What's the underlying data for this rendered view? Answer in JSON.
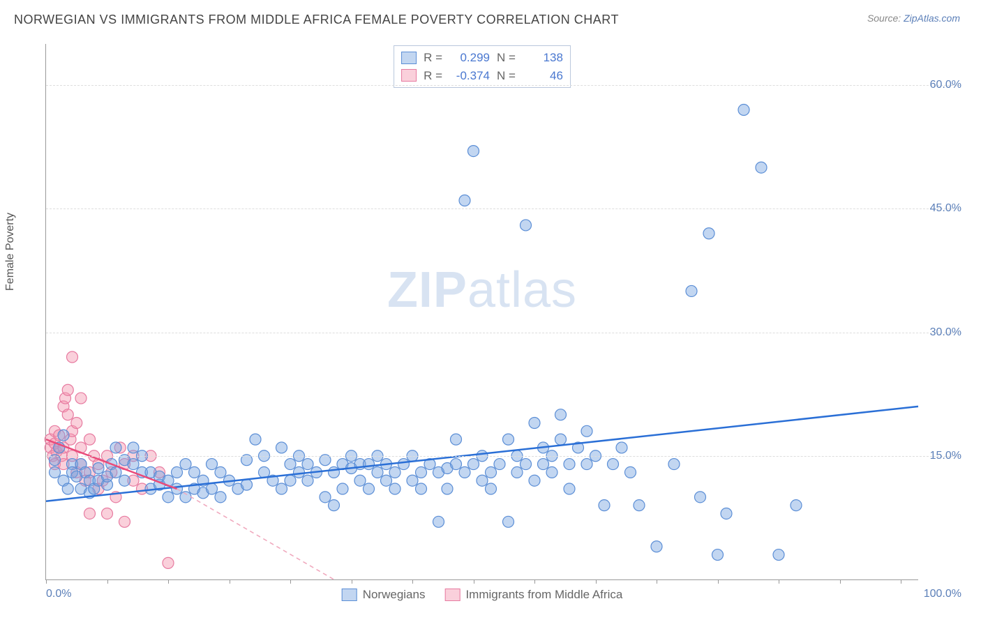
{
  "title": "NORWEGIAN VS IMMIGRANTS FROM MIDDLE AFRICA FEMALE POVERTY CORRELATION CHART",
  "source_prefix": "Source: ",
  "source_link": "ZipAtlas.com",
  "y_axis_label": "Female Poverty",
  "watermark_zip": "ZIP",
  "watermark_atlas": "atlas",
  "chart": {
    "type": "scatter",
    "xlim": [
      0,
      100
    ],
    "ylim": [
      0,
      65
    ],
    "x_min_label": "0.0%",
    "x_max_label": "100.0%",
    "y_ticks": [
      15,
      30,
      45,
      60
    ],
    "y_tick_labels": [
      "15.0%",
      "30.0%",
      "45.0%",
      "60.0%"
    ],
    "x_tick_positions": [
      0,
      7,
      14,
      21,
      28,
      35,
      42,
      49,
      56,
      63,
      70,
      77,
      84,
      91,
      98
    ],
    "background_color": "#ffffff",
    "grid_color": "#dddddd",
    "marker_radius": 8,
    "series": [
      {
        "name": "Norwegians",
        "color_fill": "rgba(120,165,225,0.45)",
        "color_stroke": "#5b8ed6",
        "r_label": "R =",
        "r_value": "0.299",
        "n_label": "N =",
        "n_value": "138",
        "trend": {
          "x1": 0,
          "y1": 9.5,
          "x2": 100,
          "y2": 21,
          "color": "#2a6fd6",
          "width": 2.5
        },
        "points": [
          [
            1,
            13
          ],
          [
            1,
            14.5
          ],
          [
            1.5,
            16
          ],
          [
            2,
            17.5
          ],
          [
            2,
            12
          ],
          [
            2.5,
            11
          ],
          [
            3,
            14
          ],
          [
            3,
            13
          ],
          [
            3.5,
            12.5
          ],
          [
            4,
            14
          ],
          [
            4,
            11
          ],
          [
            4.5,
            13
          ],
          [
            5,
            12
          ],
          [
            5,
            10.5
          ],
          [
            5.5,
            11
          ],
          [
            6,
            12
          ],
          [
            6,
            13.5
          ],
          [
            7,
            11.5
          ],
          [
            7,
            12.5
          ],
          [
            7.5,
            14
          ],
          [
            8,
            13
          ],
          [
            8,
            16
          ],
          [
            9,
            12
          ],
          [
            9,
            14.5
          ],
          [
            10,
            14
          ],
          [
            10,
            16
          ],
          [
            11,
            13
          ],
          [
            11,
            15
          ],
          [
            12,
            11
          ],
          [
            12,
            13
          ],
          [
            13,
            11.5
          ],
          [
            13,
            12.5
          ],
          [
            14,
            10
          ],
          [
            14,
            12
          ],
          [
            15,
            11
          ],
          [
            15,
            13
          ],
          [
            16,
            10
          ],
          [
            16,
            14
          ],
          [
            17,
            11
          ],
          [
            17,
            13
          ],
          [
            18,
            10.5
          ],
          [
            18,
            12
          ],
          [
            19,
            11
          ],
          [
            19,
            14
          ],
          [
            20,
            10
          ],
          [
            20,
            13
          ],
          [
            21,
            12
          ],
          [
            22,
            11
          ],
          [
            23,
            14.5
          ],
          [
            23,
            11.5
          ],
          [
            24,
            17
          ],
          [
            25,
            13
          ],
          [
            25,
            15
          ],
          [
            26,
            12
          ],
          [
            27,
            11
          ],
          [
            27,
            16
          ],
          [
            28,
            12
          ],
          [
            28,
            14
          ],
          [
            29,
            13
          ],
          [
            29,
            15
          ],
          [
            30,
            12
          ],
          [
            30,
            14
          ],
          [
            31,
            13
          ],
          [
            32,
            10
          ],
          [
            32,
            14.5
          ],
          [
            33,
            9
          ],
          [
            33,
            13
          ],
          [
            34,
            14
          ],
          [
            34,
            11
          ],
          [
            35,
            13.5
          ],
          [
            35,
            15
          ],
          [
            36,
            14
          ],
          [
            36,
            12
          ],
          [
            37,
            14
          ],
          [
            37,
            11
          ],
          [
            38,
            13
          ],
          [
            38,
            15
          ],
          [
            39,
            14
          ],
          [
            39,
            12
          ],
          [
            40,
            13
          ],
          [
            40,
            11
          ],
          [
            41,
            14
          ],
          [
            42,
            12
          ],
          [
            42,
            15
          ],
          [
            43,
            13
          ],
          [
            43,
            11
          ],
          [
            44,
            14
          ],
          [
            45,
            13
          ],
          [
            45,
            7
          ],
          [
            46,
            13.5
          ],
          [
            46,
            11
          ],
          [
            47,
            14
          ],
          [
            47,
            17
          ],
          [
            48,
            13
          ],
          [
            48,
            46
          ],
          [
            49,
            14
          ],
          [
            49,
            52
          ],
          [
            50,
            15
          ],
          [
            50,
            12
          ],
          [
            51,
            13
          ],
          [
            51,
            11
          ],
          [
            52,
            14
          ],
          [
            53,
            17
          ],
          [
            53,
            7
          ],
          [
            54,
            13
          ],
          [
            54,
            15
          ],
          [
            55,
            43
          ],
          [
            55,
            14
          ],
          [
            56,
            12
          ],
          [
            56,
            19
          ],
          [
            57,
            14
          ],
          [
            57,
            16
          ],
          [
            58,
            15
          ],
          [
            58,
            13
          ],
          [
            59,
            17
          ],
          [
            59,
            20
          ],
          [
            60,
            14
          ],
          [
            60,
            11
          ],
          [
            61,
            16
          ],
          [
            62,
            14
          ],
          [
            62,
            18
          ],
          [
            63,
            15
          ],
          [
            64,
            9
          ],
          [
            65,
            14
          ],
          [
            66,
            16
          ],
          [
            67,
            13
          ],
          [
            68,
            9
          ],
          [
            70,
            4
          ],
          [
            72,
            14
          ],
          [
            74,
            35
          ],
          [
            75,
            10
          ],
          [
            76,
            42
          ],
          [
            77,
            3
          ],
          [
            78,
            8
          ],
          [
            80,
            57
          ],
          [
            82,
            50
          ],
          [
            84,
            3
          ],
          [
            86,
            9
          ]
        ]
      },
      {
        "name": "Immigrants from Middle Africa",
        "color_fill": "rgba(245,150,175,0.45)",
        "color_stroke": "#e77aa0",
        "r_label": "R =",
        "r_value": "-0.374",
        "n_label": "N =",
        "n_value": "46",
        "trend_solid": {
          "x1": 0,
          "y1": 17,
          "x2": 15,
          "y2": 11,
          "color": "#ea4b7a",
          "width": 2.5
        },
        "trend_dash": {
          "x1": 15,
          "y1": 11,
          "x2": 33,
          "y2": 0,
          "color": "#f0a8bd",
          "width": 1.5
        },
        "points": [
          [
            0.5,
            16
          ],
          [
            0.5,
            17
          ],
          [
            0.8,
            15
          ],
          [
            1,
            16.5
          ],
          [
            1,
            18
          ],
          [
            1,
            14
          ],
          [
            1.2,
            15.5
          ],
          [
            1.5,
            16
          ],
          [
            1.5,
            17.5
          ],
          [
            1.8,
            15
          ],
          [
            2,
            16
          ],
          [
            2,
            14
          ],
          [
            2,
            21
          ],
          [
            2.2,
            22
          ],
          [
            2.5,
            23
          ],
          [
            2.5,
            20
          ],
          [
            2.8,
            17
          ],
          [
            3,
            27
          ],
          [
            3,
            15
          ],
          [
            3,
            18
          ],
          [
            3.5,
            13
          ],
          [
            3.5,
            19
          ],
          [
            4,
            14
          ],
          [
            4,
            16
          ],
          [
            4,
            22
          ],
          [
            4.5,
            12
          ],
          [
            5,
            17
          ],
          [
            5,
            13
          ],
          [
            5,
            8
          ],
          [
            5.5,
            15
          ],
          [
            6,
            14
          ],
          [
            6,
            11
          ],
          [
            6.5,
            12
          ],
          [
            7,
            15
          ],
          [
            7,
            8
          ],
          [
            7.5,
            13
          ],
          [
            8,
            10
          ],
          [
            8.5,
            16
          ],
          [
            9,
            14
          ],
          [
            9,
            7
          ],
          [
            10,
            15
          ],
          [
            10,
            12
          ],
          [
            11,
            11
          ],
          [
            12,
            15
          ],
          [
            13,
            13
          ],
          [
            14,
            2
          ]
        ]
      }
    ]
  },
  "legend": {
    "item1": "Norwegians",
    "item2": "Immigrants from Middle Africa"
  }
}
